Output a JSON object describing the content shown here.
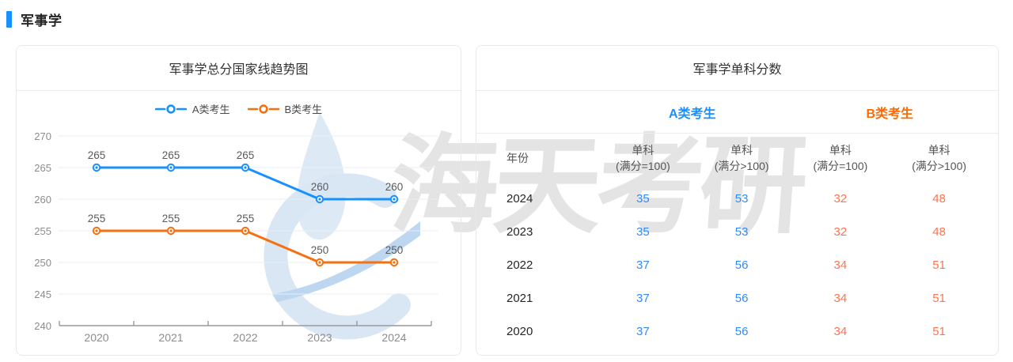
{
  "page": {
    "section_title": "军事学",
    "accent_color": "#1890ff"
  },
  "watermark": {
    "text": "海天考研",
    "logo_icon": "haitian-swoosh-logo"
  },
  "trend_card": {
    "title": "军事学总分国家线趋势图"
  },
  "chart_data": {
    "type": "line",
    "title": "军事学总分国家线趋势图",
    "categories": [
      "2020",
      "2021",
      "2022",
      "2023",
      "2024"
    ],
    "series": [
      {
        "name": "A类考生",
        "color": "#1890ff",
        "values": [
          265,
          265,
          265,
          260,
          260
        ]
      },
      {
        "name": "B类考生",
        "color": "#f7700f",
        "values": [
          255,
          255,
          255,
          250,
          250
        ]
      }
    ],
    "ylim": [
      240,
      270
    ],
    "ytick_step": 5,
    "yticks": [
      240,
      245,
      250,
      255,
      260,
      265,
      270
    ],
    "grid": true,
    "legend_position": "top",
    "data_labels": true,
    "axis_label_color": "#8c8c8c",
    "data_label_color": "#5a5a5a",
    "gridline_color": "#e9eef5",
    "axis_line_color": "#999999"
  },
  "score_table": {
    "title": "军事学单科分数",
    "group_headers": [
      {
        "label": "A类考生",
        "color": "#1890ff"
      },
      {
        "label": "B类考生",
        "color": "#ff6a00"
      }
    ],
    "columns": [
      {
        "line1": "年份",
        "line2": ""
      },
      {
        "line1": "单科",
        "line2": "(满分=100)"
      },
      {
        "line1": "单科",
        "line2": "(满分>100)"
      },
      {
        "line1": "单科",
        "line2": "(满分=100)"
      },
      {
        "line1": "单科",
        "line2": "(满分>100)"
      }
    ],
    "value_colors": {
      "a": "#2f8cf6",
      "b": "#ff7350"
    },
    "rows": [
      [
        "2024",
        "35",
        "53",
        "32",
        "48"
      ],
      [
        "2023",
        "35",
        "53",
        "32",
        "48"
      ],
      [
        "2022",
        "37",
        "56",
        "34",
        "51"
      ],
      [
        "2021",
        "37",
        "56",
        "34",
        "51"
      ],
      [
        "2020",
        "37",
        "56",
        "34",
        "51"
      ]
    ]
  }
}
